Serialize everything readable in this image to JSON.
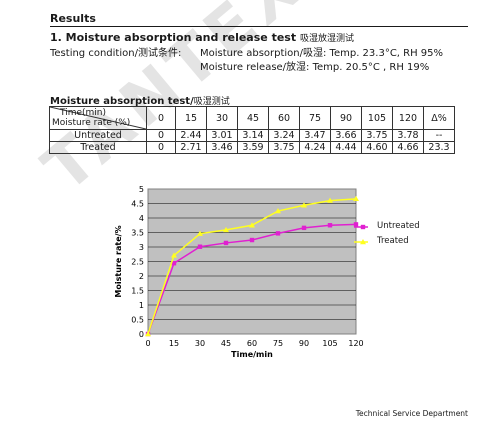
{
  "watermark": "TANTEX TECHNICAL",
  "results_title": "Results",
  "section": {
    "title": "1. Moisture absorption and release test",
    "title_cn": "吸湿放湿测试",
    "condition_label": "Testing condition/测试条件:",
    "condition_absorption": "Moisture absorption/吸湿: Temp. 23.3°C, RH 95%",
    "condition_release": "Moisture release/放湿: Temp. 20.5°C , RH 19%"
  },
  "absorption": {
    "title": "Moisture absorption test/",
    "title_cn": "吸湿测试",
    "header_time": "Time(min)",
    "header_rate": "Moisture rate (%)",
    "columns": [
      "0",
      "15",
      "30",
      "45",
      "60",
      "75",
      "90",
      "105",
      "120",
      "Δ%"
    ],
    "rows": [
      {
        "label": "Untreated",
        "cells": [
          "0",
          "2.44",
          "3.01",
          "3.14",
          "3.24",
          "3.47",
          "3.66",
          "3.75",
          "3.78",
          "--"
        ]
      },
      {
        "label": "Treated",
        "cells": [
          "0",
          "2.71",
          "3.46",
          "3.59",
          "3.75",
          "4.24",
          "4.44",
          "4.60",
          "4.66",
          "23.3"
        ]
      }
    ]
  },
  "chart_data": {
    "type": "line",
    "x": [
      0,
      15,
      30,
      45,
      60,
      75,
      90,
      105,
      120
    ],
    "xlabel": "Time/min",
    "ylabel": "Moisture rate/%",
    "ylim": [
      0,
      5
    ],
    "y_ticks": [
      "0",
      "0.5",
      "1",
      "1.5",
      "2",
      "2.5",
      "3",
      "3.5",
      "4",
      "4.5",
      "5"
    ],
    "x_ticks": [
      "0",
      "15",
      "30",
      "45",
      "60",
      "75",
      "90",
      "105",
      "120"
    ],
    "grid": true,
    "legend_position": "right",
    "series": [
      {
        "name": "Untreated",
        "color": "#e020d0",
        "marker": "square",
        "values": [
          0,
          2.44,
          3.01,
          3.14,
          3.24,
          3.47,
          3.66,
          3.75,
          3.78
        ]
      },
      {
        "name": "Treated",
        "color": "#ffff20",
        "marker": "triangle",
        "values": [
          0,
          2.71,
          3.46,
          3.59,
          3.75,
          4.24,
          4.44,
          4.6,
          4.66
        ]
      }
    ],
    "plot_bg": "#c0c0c0"
  },
  "footer": "Technical Service Department"
}
